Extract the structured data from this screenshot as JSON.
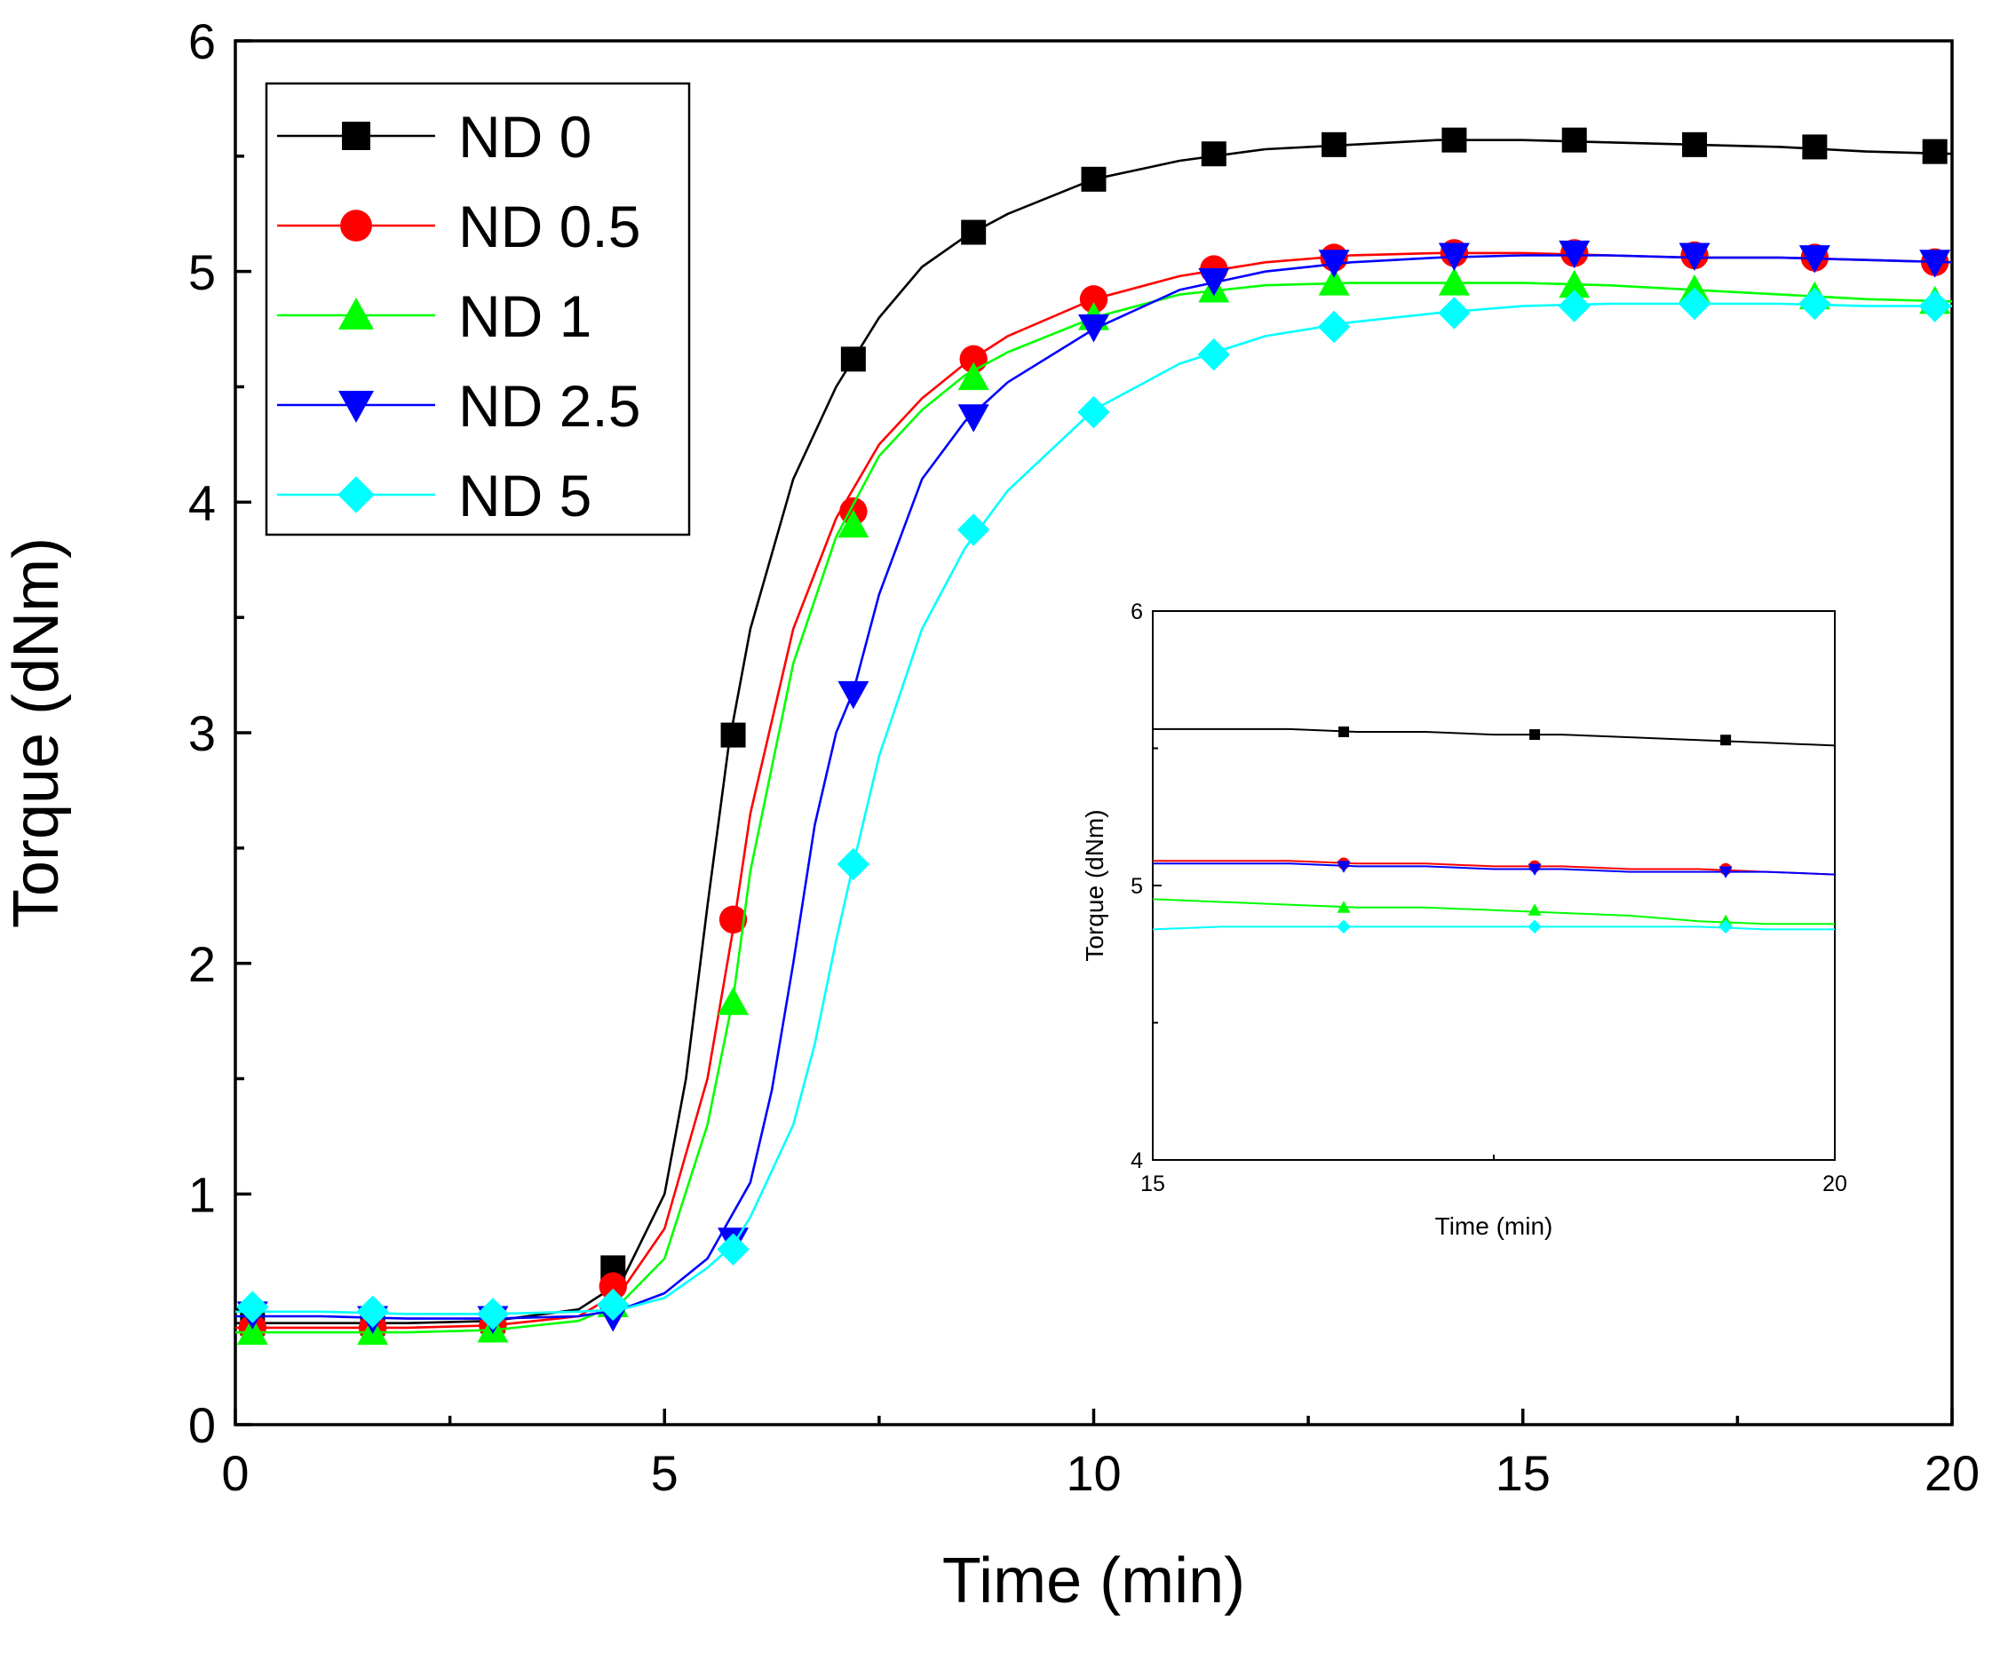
{
  "chart_data": [
    {
      "type": "line",
      "title": "",
      "xlabel": "Time (min)",
      "ylabel": "Torque (dNm)",
      "xlim": [
        0,
        20
      ],
      "ylim": [
        0,
        6
      ],
      "xticks": [
        0,
        5,
        10,
        15,
        20
      ],
      "yticks": [
        0,
        1,
        2,
        3,
        4,
        5,
        6
      ],
      "x_tick_labels": [
        "0",
        "5",
        "10",
        "15",
        "20"
      ],
      "y_tick_labels": [
        "0",
        "1",
        "2",
        "3",
        "4",
        "5",
        "6"
      ],
      "grid": false,
      "legend_position": "top-left",
      "marker_x": [
        0.2,
        1.6,
        3.0,
        4.4,
        5.8,
        7.2,
        8.6,
        10.0,
        11.4,
        12.8,
        14.2,
        15.6,
        17.0,
        18.4,
        19.8
      ],
      "series": [
        {
          "name": "ND 0",
          "color": "#000000",
          "marker": "square",
          "curve_x": [
            0,
            1,
            2,
            3,
            4,
            4.5,
            5,
            5.25,
            5.5,
            5.75,
            6,
            6.5,
            7,
            7.5,
            8,
            8.5,
            9,
            10,
            11,
            12,
            13,
            14,
            15,
            16,
            17,
            18,
            19,
            20
          ],
          "curve_y": [
            0.44,
            0.44,
            0.44,
            0.45,
            0.5,
            0.62,
            1.0,
            1.5,
            2.25,
            2.95,
            3.45,
            4.1,
            4.5,
            4.8,
            5.02,
            5.15,
            5.25,
            5.4,
            5.48,
            5.53,
            5.55,
            5.57,
            5.57,
            5.56,
            5.55,
            5.54,
            5.52,
            5.51
          ],
          "marker_y": [
            0.44,
            0.44,
            0.45,
            0.68,
            2.99,
            4.62,
            5.17,
            5.4,
            5.51,
            5.55,
            5.57,
            5.57,
            5.55,
            5.54,
            5.52
          ]
        },
        {
          "name": "ND 0.5",
          "color": "#ff0000",
          "marker": "circle",
          "curve_x": [
            0,
            1,
            2,
            3,
            4,
            4.5,
            5,
            5.5,
            5.8,
            6,
            6.5,
            7,
            7.5,
            8,
            8.5,
            9,
            10,
            11,
            12,
            13,
            14,
            15,
            16,
            17,
            18,
            19,
            20
          ],
          "curve_y": [
            0.42,
            0.42,
            0.42,
            0.43,
            0.47,
            0.58,
            0.85,
            1.5,
            2.15,
            2.65,
            3.45,
            3.93,
            4.25,
            4.45,
            4.6,
            4.72,
            4.88,
            4.98,
            5.04,
            5.07,
            5.08,
            5.08,
            5.07,
            5.06,
            5.06,
            5.05,
            5.04
          ],
          "marker_y": [
            0.42,
            0.42,
            0.43,
            0.6,
            2.19,
            3.96,
            4.62,
            4.88,
            5.01,
            5.06,
            5.08,
            5.08,
            5.07,
            5.06,
            5.04
          ]
        },
        {
          "name": "ND 1",
          "color": "#00ff00",
          "marker": "triangle-up",
          "curve_x": [
            0,
            1,
            2,
            3,
            4,
            4.5,
            5,
            5.5,
            5.8,
            6,
            6.5,
            7,
            7.5,
            8,
            8.5,
            9,
            10,
            11,
            12,
            13,
            14,
            15,
            16,
            17,
            18,
            19,
            20
          ],
          "curve_y": [
            0.4,
            0.4,
            0.4,
            0.41,
            0.45,
            0.53,
            0.72,
            1.3,
            1.85,
            2.4,
            3.3,
            3.85,
            4.2,
            4.4,
            4.55,
            4.65,
            4.8,
            4.9,
            4.94,
            4.95,
            4.95,
            4.95,
            4.94,
            4.92,
            4.9,
            4.88,
            4.87
          ],
          "marker_y": [
            0.4,
            0.4,
            0.41,
            0.52,
            1.83,
            3.9,
            4.54,
            4.8,
            4.92,
            4.95,
            4.95,
            4.94,
            4.92,
            4.89,
            4.87
          ]
        },
        {
          "name": "ND 2.5",
          "color": "#0000ff",
          "marker": "triangle-down",
          "curve_x": [
            0,
            1,
            2,
            3,
            4,
            4.5,
            5,
            5.5,
            6,
            6.25,
            6.5,
            6.75,
            7,
            7.2,
            7.5,
            8,
            8.5,
            9,
            10,
            11,
            12,
            13,
            14,
            15,
            16,
            17,
            18,
            19,
            20
          ],
          "curve_y": [
            0.47,
            0.47,
            0.46,
            0.46,
            0.47,
            0.5,
            0.57,
            0.72,
            1.05,
            1.45,
            2.0,
            2.6,
            3.0,
            3.18,
            3.6,
            4.1,
            4.35,
            4.52,
            4.75,
            4.92,
            5.0,
            5.04,
            5.06,
            5.07,
            5.07,
            5.06,
            5.06,
            5.05,
            5.04
          ],
          "marker_y": [
            0.48,
            0.46,
            0.46,
            0.47,
            0.8,
            3.17,
            4.37,
            4.76,
            4.96,
            5.04,
            5.07,
            5.08,
            5.07,
            5.06,
            5.04
          ]
        },
        {
          "name": "ND 5",
          "color": "#00ffff",
          "marker": "diamond",
          "curve_x": [
            0,
            1,
            2,
            3,
            4,
            4.5,
            5,
            5.5,
            5.8,
            6,
            6.5,
            6.75,
            7,
            7.2,
            7.5,
            8,
            8.5,
            9,
            10,
            11,
            12,
            13,
            14,
            15,
            16,
            17,
            18,
            19,
            20
          ],
          "curve_y": [
            0.49,
            0.49,
            0.48,
            0.48,
            0.49,
            0.5,
            0.55,
            0.68,
            0.78,
            0.9,
            1.3,
            1.65,
            2.1,
            2.43,
            2.9,
            3.45,
            3.8,
            4.05,
            4.4,
            4.6,
            4.72,
            4.78,
            4.82,
            4.85,
            4.86,
            4.86,
            4.86,
            4.85,
            4.85
          ],
          "marker_y": [
            0.51,
            0.49,
            0.48,
            0.52,
            0.76,
            2.43,
            3.88,
            4.39,
            4.64,
            4.76,
            4.82,
            4.85,
            4.86,
            4.86,
            4.85
          ]
        }
      ]
    },
    {
      "type": "line",
      "title": "",
      "xlabel": "Time (min)",
      "ylabel": "Torque (dNm)",
      "xlim": [
        15,
        20
      ],
      "ylim": [
        4,
        6
      ],
      "xticks": [
        15,
        20
      ],
      "yticks": [
        4,
        5,
        6
      ],
      "x_tick_labels": [
        "15",
        "20"
      ],
      "y_tick_labels": [
        "4",
        "5",
        "6"
      ],
      "grid": false,
      "legend_position": "none",
      "marker_x": [
        16.4,
        17.8,
        19.2
      ],
      "series": [
        {
          "name": "ND 0",
          "color": "#000000",
          "marker": "square",
          "curve_x": [
            15,
            15.5,
            16,
            16.5,
            17,
            17.5,
            18,
            18.5,
            19,
            19.5,
            20
          ],
          "curve_y": [
            5.57,
            5.57,
            5.57,
            5.56,
            5.56,
            5.55,
            5.55,
            5.54,
            5.53,
            5.52,
            5.51
          ],
          "marker_y": [
            5.56,
            5.55,
            5.53
          ]
        },
        {
          "name": "ND 0.5",
          "color": "#ff0000",
          "marker": "circle",
          "curve_x": [
            15,
            15.5,
            16,
            16.5,
            17,
            17.5,
            18,
            18.5,
            19,
            19.5,
            20
          ],
          "curve_y": [
            5.09,
            5.09,
            5.09,
            5.08,
            5.08,
            5.07,
            5.07,
            5.06,
            5.06,
            5.05,
            5.04
          ],
          "marker_y": [
            5.08,
            5.07,
            5.06
          ]
        },
        {
          "name": "ND 1",
          "color": "#00ff00",
          "marker": "triangle-up",
          "curve_x": [
            15,
            15.5,
            16,
            16.5,
            17,
            17.5,
            18,
            18.5,
            19,
            19.5,
            20
          ],
          "curve_y": [
            4.95,
            4.94,
            4.93,
            4.92,
            4.92,
            4.91,
            4.9,
            4.89,
            4.87,
            4.86,
            4.86
          ],
          "marker_y": [
            4.92,
            4.91,
            4.87
          ]
        },
        {
          "name": "ND 2.5",
          "color": "#0000ff",
          "marker": "triangle-down",
          "curve_x": [
            15,
            15.5,
            16,
            16.5,
            17,
            17.5,
            18,
            18.5,
            19,
            19.5,
            20
          ],
          "curve_y": [
            5.08,
            5.08,
            5.08,
            5.07,
            5.07,
            5.06,
            5.06,
            5.05,
            5.05,
            5.05,
            5.04
          ],
          "marker_y": [
            5.07,
            5.06,
            5.05
          ]
        },
        {
          "name": "ND 5",
          "color": "#00ffff",
          "marker": "diamond",
          "curve_x": [
            15,
            15.5,
            16,
            16.5,
            17,
            17.5,
            18,
            18.5,
            19,
            19.5,
            20
          ],
          "curve_y": [
            4.84,
            4.85,
            4.85,
            4.85,
            4.85,
            4.85,
            4.85,
            4.85,
            4.85,
            4.84,
            4.84
          ],
          "marker_y": [
            4.85,
            4.85,
            4.85
          ]
        }
      ]
    }
  ]
}
